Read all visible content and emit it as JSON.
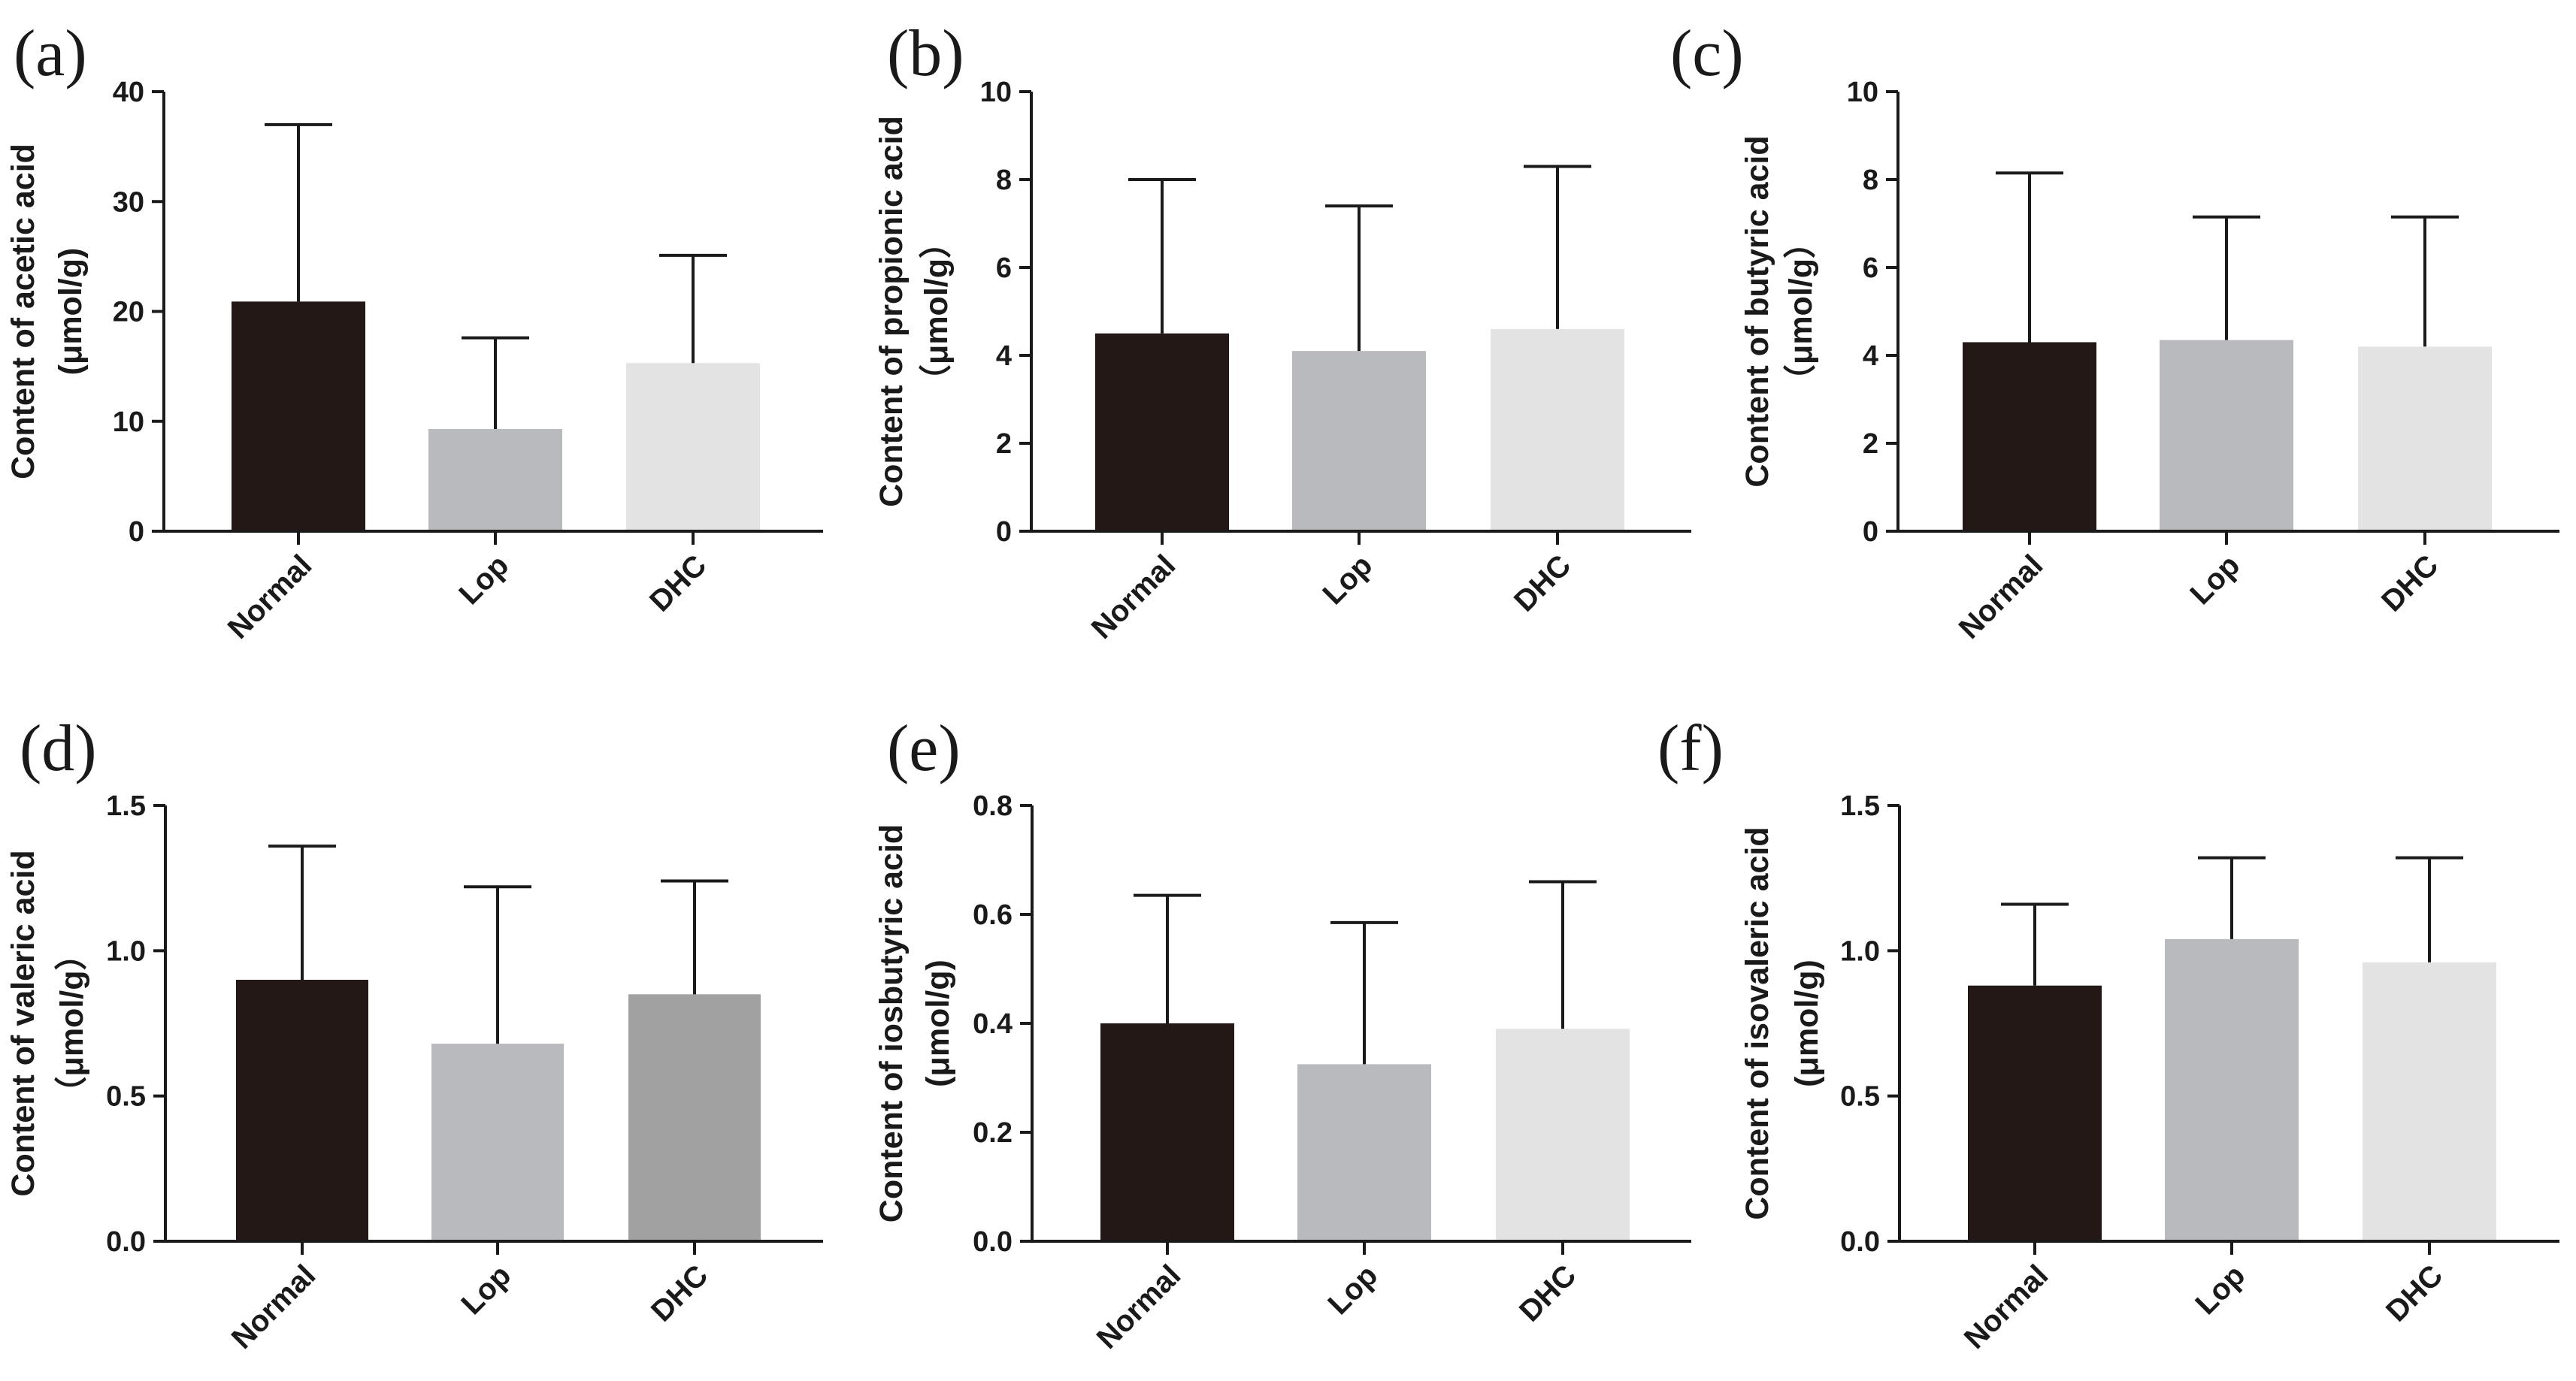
{
  "chart_data": [
    {
      "type": "bar",
      "panel_label": "(a)",
      "categories": [
        "Normal",
        "Lop",
        "DHC"
      ],
      "values": [
        20.9,
        9.3,
        15.3
      ],
      "error_upper": [
        37.0,
        17.6,
        25.1
      ],
      "colors": [
        "#231815",
        "#b9babd",
        "#e3e3e3"
      ],
      "ylabel_line1": "Content of acetic acid",
      "ylabel_line2": "(μmol/g)",
      "ylim": [
        0,
        40
      ],
      "yticks": [
        "0",
        "10",
        "20",
        "30",
        "40"
      ],
      "ytick_values": [
        0,
        10,
        20,
        30,
        40
      ]
    },
    {
      "type": "bar",
      "panel_label": "(b)",
      "categories": [
        "Normal",
        "Lop",
        "DHC"
      ],
      "values": [
        4.5,
        4.1,
        4.6
      ],
      "error_upper": [
        8.0,
        7.4,
        8.3
      ],
      "colors": [
        "#231815",
        "#b9babd",
        "#e3e3e3"
      ],
      "ylabel_line1": "Content of propionic acid",
      "ylabel_line2": "（μmol/g）",
      "ylim": [
        0,
        10
      ],
      "yticks": [
        "0",
        "2",
        "4",
        "6",
        "8",
        "10"
      ],
      "ytick_values": [
        0,
        2,
        4,
        6,
        8,
        10
      ]
    },
    {
      "type": "bar",
      "panel_label": "(c)",
      "categories": [
        "Normal",
        "Lop",
        "DHC"
      ],
      "values": [
        4.3,
        4.35,
        4.2
      ],
      "error_upper": [
        8.15,
        7.15,
        7.15
      ],
      "colors": [
        "#231815",
        "#b9babd",
        "#e3e3e3"
      ],
      "ylabel_line1": "Content of butyric acid",
      "ylabel_line2": "（μmol/g）",
      "ylim": [
        0,
        10
      ],
      "yticks": [
        "0",
        "2",
        "4",
        "6",
        "8",
        "10"
      ],
      "ytick_values": [
        0,
        2,
        4,
        6,
        8,
        10
      ]
    },
    {
      "type": "bar",
      "panel_label": "(d)",
      "categories": [
        "Normal",
        "Lop",
        "DHC"
      ],
      "values": [
        0.9,
        0.68,
        0.85
      ],
      "error_upper": [
        1.36,
        1.22,
        1.24
      ],
      "colors": [
        "#231815",
        "#b9babd",
        "#a0a1a0"
      ],
      "ylabel_line1": "Content of valeric acid",
      "ylabel_line2": "（μmol/g）",
      "ylim": [
        0,
        1.5
      ],
      "yticks": [
        "0.0",
        "0.5",
        "1.0",
        "1.5"
      ],
      "ytick_values": [
        0,
        0.5,
        1.0,
        1.5
      ]
    },
    {
      "type": "bar",
      "panel_label": "(e)",
      "categories": [
        "Normal",
        "Lop",
        "DHC"
      ],
      "values": [
        0.4,
        0.325,
        0.39
      ],
      "error_upper": [
        0.635,
        0.585,
        0.66
      ],
      "colors": [
        "#231815",
        "#b9babd",
        "#e3e3e3"
      ],
      "ylabel_line1": "Content of iosbutyric acid",
      "ylabel_line2": "(μmol/g)",
      "ylim": [
        0,
        0.8
      ],
      "yticks": [
        "0.0",
        "0.2",
        "0.4",
        "0.6",
        "0.8"
      ],
      "ytick_values": [
        0,
        0.2,
        0.4,
        0.6,
        0.8
      ]
    },
    {
      "type": "bar",
      "panel_label": "(f)",
      "categories": [
        "Normal",
        "Lop",
        "DHC"
      ],
      "values": [
        0.88,
        1.04,
        0.96
      ],
      "error_upper": [
        1.16,
        1.32,
        1.32
      ],
      "colors": [
        "#231815",
        "#b9babd",
        "#e3e3e3"
      ],
      "ylabel_line1": "Content of isovaleric acid",
      "ylabel_line2": "(μmol/g)",
      "ylim": [
        0,
        1.5
      ],
      "yticks": [
        "0.0",
        "0.5",
        "1.0",
        "1.5"
      ],
      "ytick_values": [
        0,
        0.5,
        1.0,
        1.5
      ]
    }
  ]
}
